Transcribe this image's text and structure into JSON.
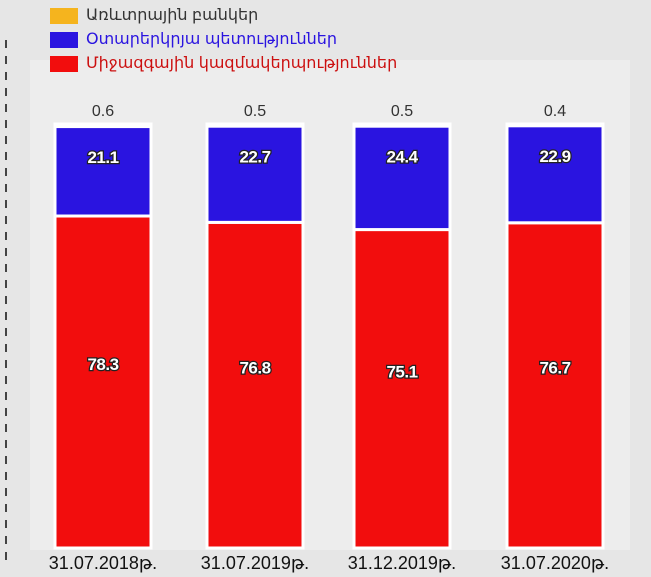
{
  "chart_data": {
    "type": "stacked-bar",
    "categories": [
      "31.07.2018թ.",
      "31.07.2019թ.",
      "31.12.2019թ.",
      "31.07.2020թ."
    ],
    "series": [
      {
        "name": "Միջազգային կազմակերպություններ",
        "color": "#f20d0d",
        "values": [
          78.3,
          76.8,
          75.1,
          76.7
        ]
      },
      {
        "name": "Օտարերկրյա պետություններ",
        "color": "#2a14e0",
        "values": [
          21.1,
          22.7,
          24.4,
          22.9
        ]
      },
      {
        "name": "Առևտրային բանկեր",
        "color": "#f5b41e",
        "values": [
          0.6,
          0.5,
          0.5,
          0.4
        ]
      }
    ]
  }
}
